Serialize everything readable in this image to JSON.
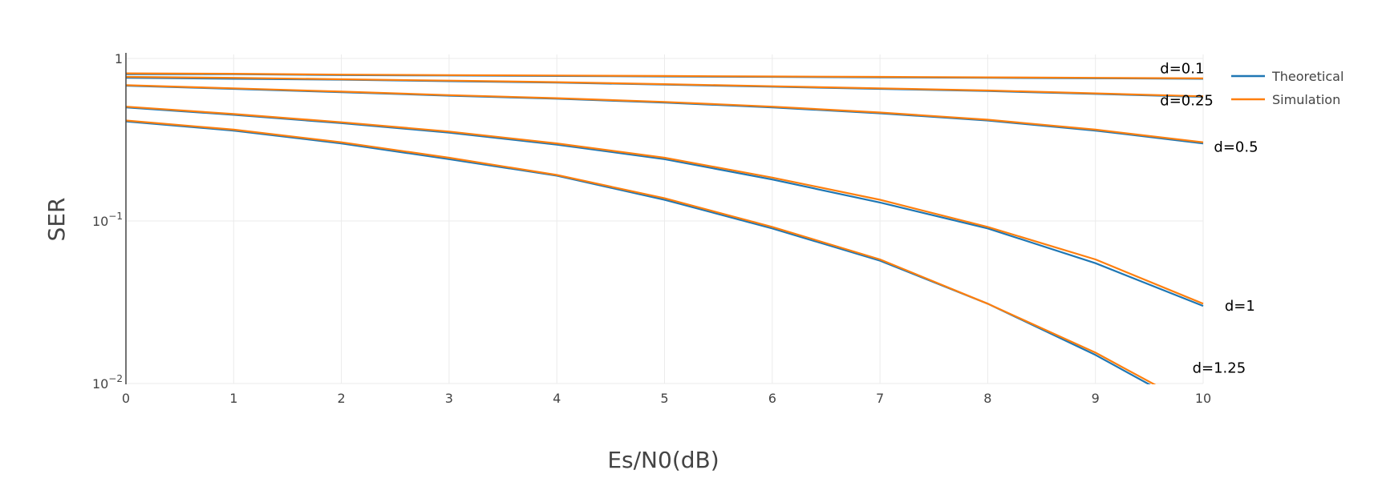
{
  "chart_data": {
    "type": "line",
    "xlabel": "Es/N0(dB)",
    "ylabel": "SER",
    "xlim": [
      0,
      10
    ],
    "ylim": [
      0.01,
      1
    ],
    "yscale": "log",
    "grid": true,
    "legend_position": "top-right",
    "x_ticks": [
      "0",
      "1",
      "2",
      "3",
      "4",
      "5",
      "6",
      "7",
      "8",
      "9",
      "10"
    ],
    "y_ticks": [
      {
        "value": 0.01,
        "base": "10",
        "exp": "−2"
      },
      {
        "value": 0.1,
        "base": "10",
        "exp": "−1"
      },
      {
        "value": 1,
        "base": "1",
        "exp": ""
      }
    ],
    "x": [
      0,
      1,
      2,
      3,
      4,
      5,
      6,
      7,
      8,
      9,
      10
    ],
    "legend": [
      {
        "name": "Theoretical",
        "color": "#1f77b4"
      },
      {
        "name": "Simulation",
        "color": "#ff7f0e"
      }
    ],
    "series": [
      {
        "group": "Theoretical",
        "curve": "d=0.1",
        "color": "#1f77b4",
        "values": [
          0.8,
          0.8,
          0.79,
          0.785,
          0.78,
          0.775,
          0.77,
          0.765,
          0.76,
          0.755,
          0.75
        ]
      },
      {
        "group": "Theoretical",
        "curve": "d=0.25",
        "color": "#1f77b4",
        "values": [
          0.76,
          0.75,
          0.74,
          0.725,
          0.71,
          0.69,
          0.67,
          0.65,
          0.63,
          0.605,
          0.58
        ]
      },
      {
        "group": "Theoretical",
        "curve": "d=0.5",
        "color": "#1f77b4",
        "values": [
          0.68,
          0.65,
          0.62,
          0.59,
          0.565,
          0.535,
          0.5,
          0.46,
          0.415,
          0.36,
          0.3
        ]
      },
      {
        "group": "Theoretical",
        "curve": "d=1",
        "color": "#1f77b4",
        "values": [
          0.5,
          0.45,
          0.4,
          0.35,
          0.295,
          0.24,
          0.18,
          0.13,
          0.09,
          0.055,
          0.03
        ]
      },
      {
        "group": "Theoretical",
        "curve": "d=1.25",
        "color": "#1f77b4",
        "values": [
          0.41,
          0.36,
          0.3,
          0.24,
          0.19,
          0.135,
          0.09,
          0.057,
          0.031,
          0.015,
          0.0065
        ]
      },
      {
        "group": "Simulation",
        "curve": "d=0.1",
        "color": "#ff7f0e",
        "values": [
          0.81,
          0.805,
          0.795,
          0.79,
          0.785,
          0.78,
          0.775,
          0.77,
          0.765,
          0.76,
          0.755
        ]
      },
      {
        "group": "Simulation",
        "curve": "d=0.25",
        "color": "#ff7f0e",
        "values": [
          0.77,
          0.76,
          0.745,
          0.73,
          0.715,
          0.695,
          0.675,
          0.655,
          0.635,
          0.61,
          0.585
        ]
      },
      {
        "group": "Simulation",
        "curve": "d=0.5",
        "color": "#ff7f0e",
        "values": [
          0.685,
          0.655,
          0.625,
          0.595,
          0.57,
          0.54,
          0.505,
          0.465,
          0.42,
          0.365,
          0.305
        ]
      },
      {
        "group": "Simulation",
        "curve": "d=1",
        "color": "#ff7f0e",
        "values": [
          0.505,
          0.455,
          0.405,
          0.355,
          0.3,
          0.245,
          0.185,
          0.135,
          0.092,
          0.058,
          0.031
        ]
      },
      {
        "group": "Simulation",
        "curve": "d=1.25",
        "color": "#ff7f0e",
        "values": [
          0.415,
          0.365,
          0.305,
          0.245,
          0.192,
          0.138,
          0.092,
          0.058,
          0.031,
          0.0155,
          0.0068
        ]
      }
    ],
    "annotations": [
      {
        "text": "d=0.1",
        "x": 9.6,
        "y": 0.87
      },
      {
        "text": "d=0.25",
        "x": 9.6,
        "y": 0.55
      },
      {
        "text": "d=0.5",
        "x": 10.1,
        "y": 0.285
      },
      {
        "text": "d=1",
        "x": 10.2,
        "y": 0.03
      },
      {
        "text": "d=1.25",
        "x": 9.9,
        "y": 0.0125
      }
    ]
  }
}
